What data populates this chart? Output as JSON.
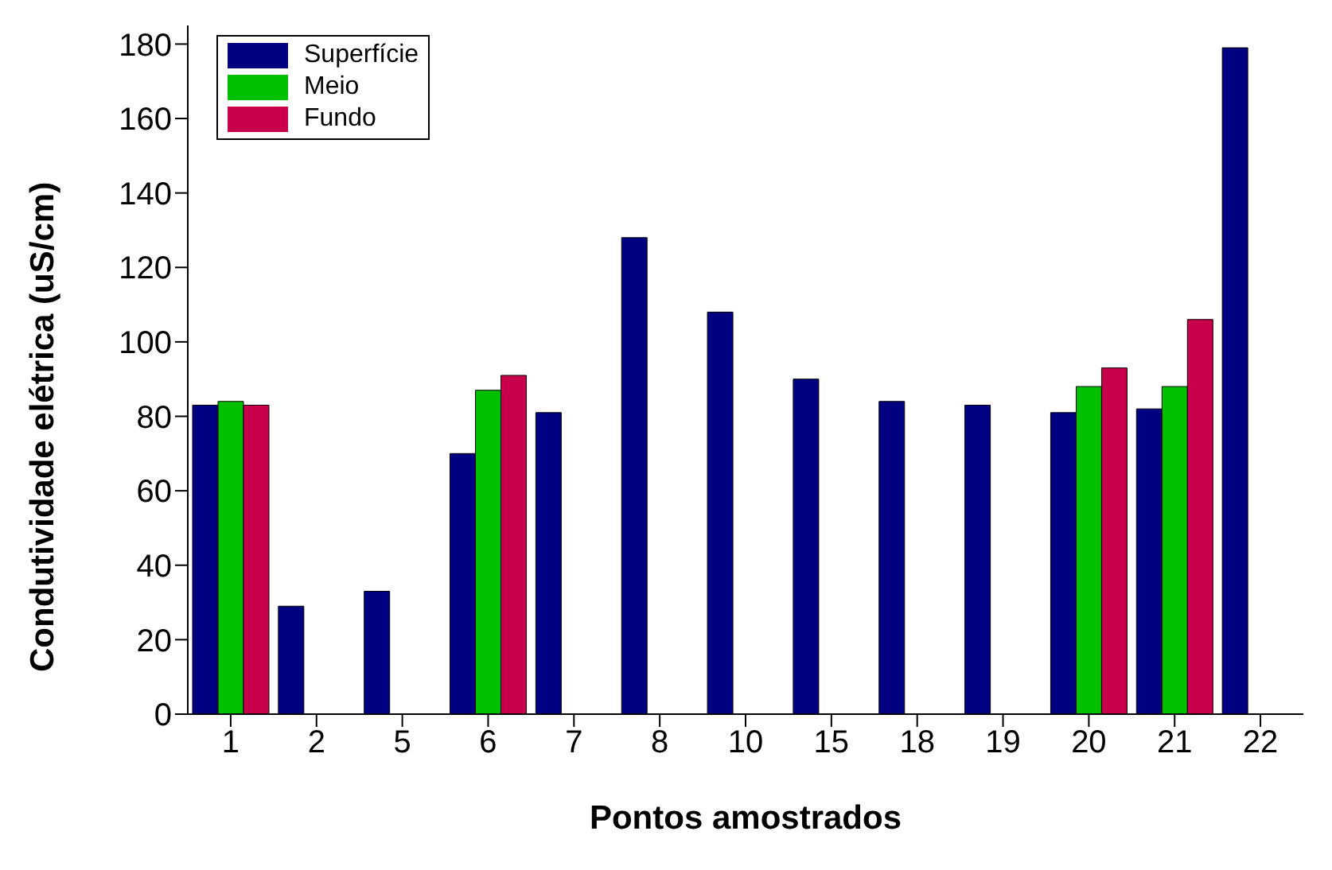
{
  "chart_data": {
    "type": "bar",
    "xlabel": "Pontos amostrados",
    "ylabel": "Condutividade elétrica (uS/cm)",
    "categories": [
      "1",
      "2",
      "5",
      "6",
      "7",
      "8",
      "10",
      "15",
      "18",
      "19",
      "20",
      "21",
      "22"
    ],
    "series": [
      {
        "name": "Superfície",
        "color": "#000080",
        "values": [
          83,
          29,
          33,
          70,
          81,
          128,
          108,
          90,
          84,
          83,
          81,
          82,
          179
        ]
      },
      {
        "name": "Meio",
        "color": "#00c000",
        "values": [
          84,
          null,
          null,
          87,
          null,
          null,
          null,
          null,
          null,
          null,
          88,
          88,
          null
        ]
      },
      {
        "name": "Fundo",
        "color": "#c8004b",
        "values": [
          83,
          null,
          null,
          91,
          null,
          null,
          null,
          null,
          null,
          null,
          93,
          106,
          null
        ]
      }
    ],
    "ylim": [
      0,
      185
    ],
    "yticks": [
      0,
      20,
      40,
      60,
      80,
      100,
      120,
      140,
      160,
      180
    ],
    "grid": false,
    "legend": "top left"
  }
}
